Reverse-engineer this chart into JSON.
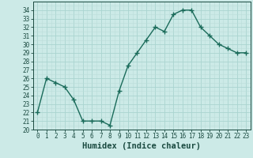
{
  "x": [
    0,
    1,
    2,
    3,
    4,
    5,
    6,
    7,
    8,
    9,
    10,
    11,
    12,
    13,
    14,
    15,
    16,
    17,
    18,
    19,
    20,
    21,
    22,
    23
  ],
  "y": [
    22.0,
    26.0,
    25.5,
    25.0,
    23.5,
    21.0,
    21.0,
    21.0,
    20.5,
    24.5,
    27.5,
    29.0,
    30.5,
    32.0,
    31.5,
    33.5,
    34.0,
    34.0,
    32.0,
    31.0,
    30.0,
    29.5,
    29.0,
    29.0
  ],
  "line_color": "#1a6b5a",
  "marker": "+",
  "marker_size": 4,
  "line_width": 1.0,
  "bg_color": "#cceae7",
  "grid_major_color": "#aad4d0",
  "grid_minor_color": "#bbddd9",
  "tick_label_color": "#1a4a40",
  "xlabel": "Humidex (Indice chaleur)",
  "xlabel_fontsize": 7.5,
  "xlabel_color": "#1a4a40",
  "xlim": [
    -0.5,
    23.5
  ],
  "ylim": [
    20,
    35
  ],
  "yticks": [
    20,
    21,
    22,
    23,
    24,
    25,
    26,
    27,
    28,
    29,
    30,
    31,
    32,
    33,
    34
  ],
  "xticks": [
    0,
    1,
    2,
    3,
    4,
    5,
    6,
    7,
    8,
    9,
    10,
    11,
    12,
    13,
    14,
    15,
    16,
    17,
    18,
    19,
    20,
    21,
    22,
    23
  ],
  "xtick_labels": [
    "0",
    "1",
    "2",
    "3",
    "4",
    "5",
    "6",
    "7",
    "8",
    "9",
    "10",
    "11",
    "12",
    "13",
    "14",
    "15",
    "16",
    "17",
    "18",
    "19",
    "20",
    "21",
    "22",
    "23"
  ],
  "tick_fontsize": 5.5
}
